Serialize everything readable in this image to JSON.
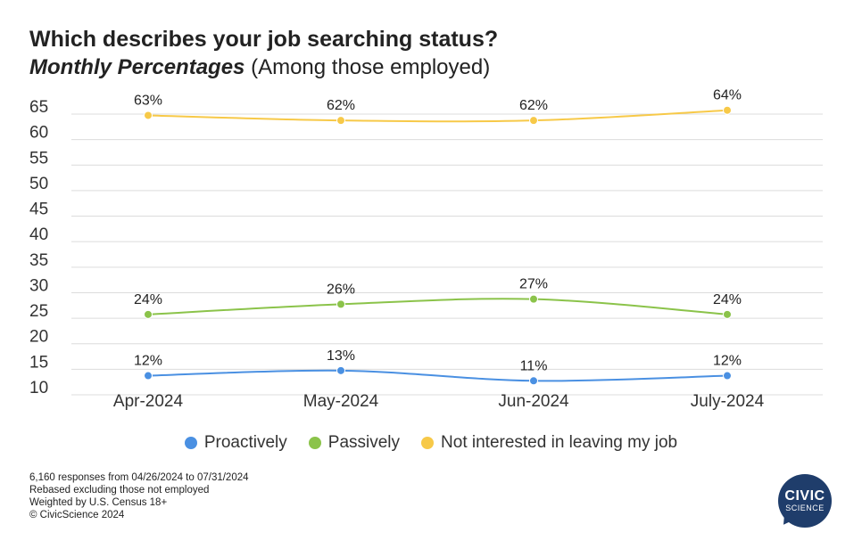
{
  "header": {
    "title": "Which describes your job searching status?",
    "subtitle_emphasis": "Monthly Percentages",
    "subtitle_rest": "(Among those employed)"
  },
  "chart_data": {
    "type": "line",
    "categories": [
      "Apr-2024",
      "May-2024",
      "Jun-2024",
      "July-2024"
    ],
    "y_ticks": [
      10,
      15,
      20,
      25,
      30,
      35,
      40,
      45,
      50,
      55,
      60,
      65
    ],
    "ylim": [
      10,
      65
    ],
    "grid": true,
    "legend_position": "bottom",
    "series": [
      {
        "name": "Proactively",
        "color": "#4a90e2",
        "values": [
          12,
          13,
          11,
          12
        ],
        "labels": [
          "12%",
          "13%",
          "11%",
          "12%"
        ]
      },
      {
        "name": "Passively",
        "color": "#8bc34a",
        "values": [
          24,
          26,
          27,
          24
        ],
        "labels": [
          "24%",
          "26%",
          "27%",
          "24%"
        ]
      },
      {
        "name": "Not interested in leaving my job",
        "color": "#f7c948",
        "values": [
          63,
          62,
          62,
          64
        ],
        "labels": [
          "63%",
          "62%",
          "62%",
          "64%"
        ]
      }
    ]
  },
  "footnotes": [
    "6,160 responses from 04/26/2024 to 07/31/2024",
    "Rebased excluding those not employed",
    "Weighted by U.S. Census 18+",
    "© CivicScience 2024"
  ],
  "logo": {
    "line1": "CIVIC",
    "line2": "SCIENCE"
  }
}
